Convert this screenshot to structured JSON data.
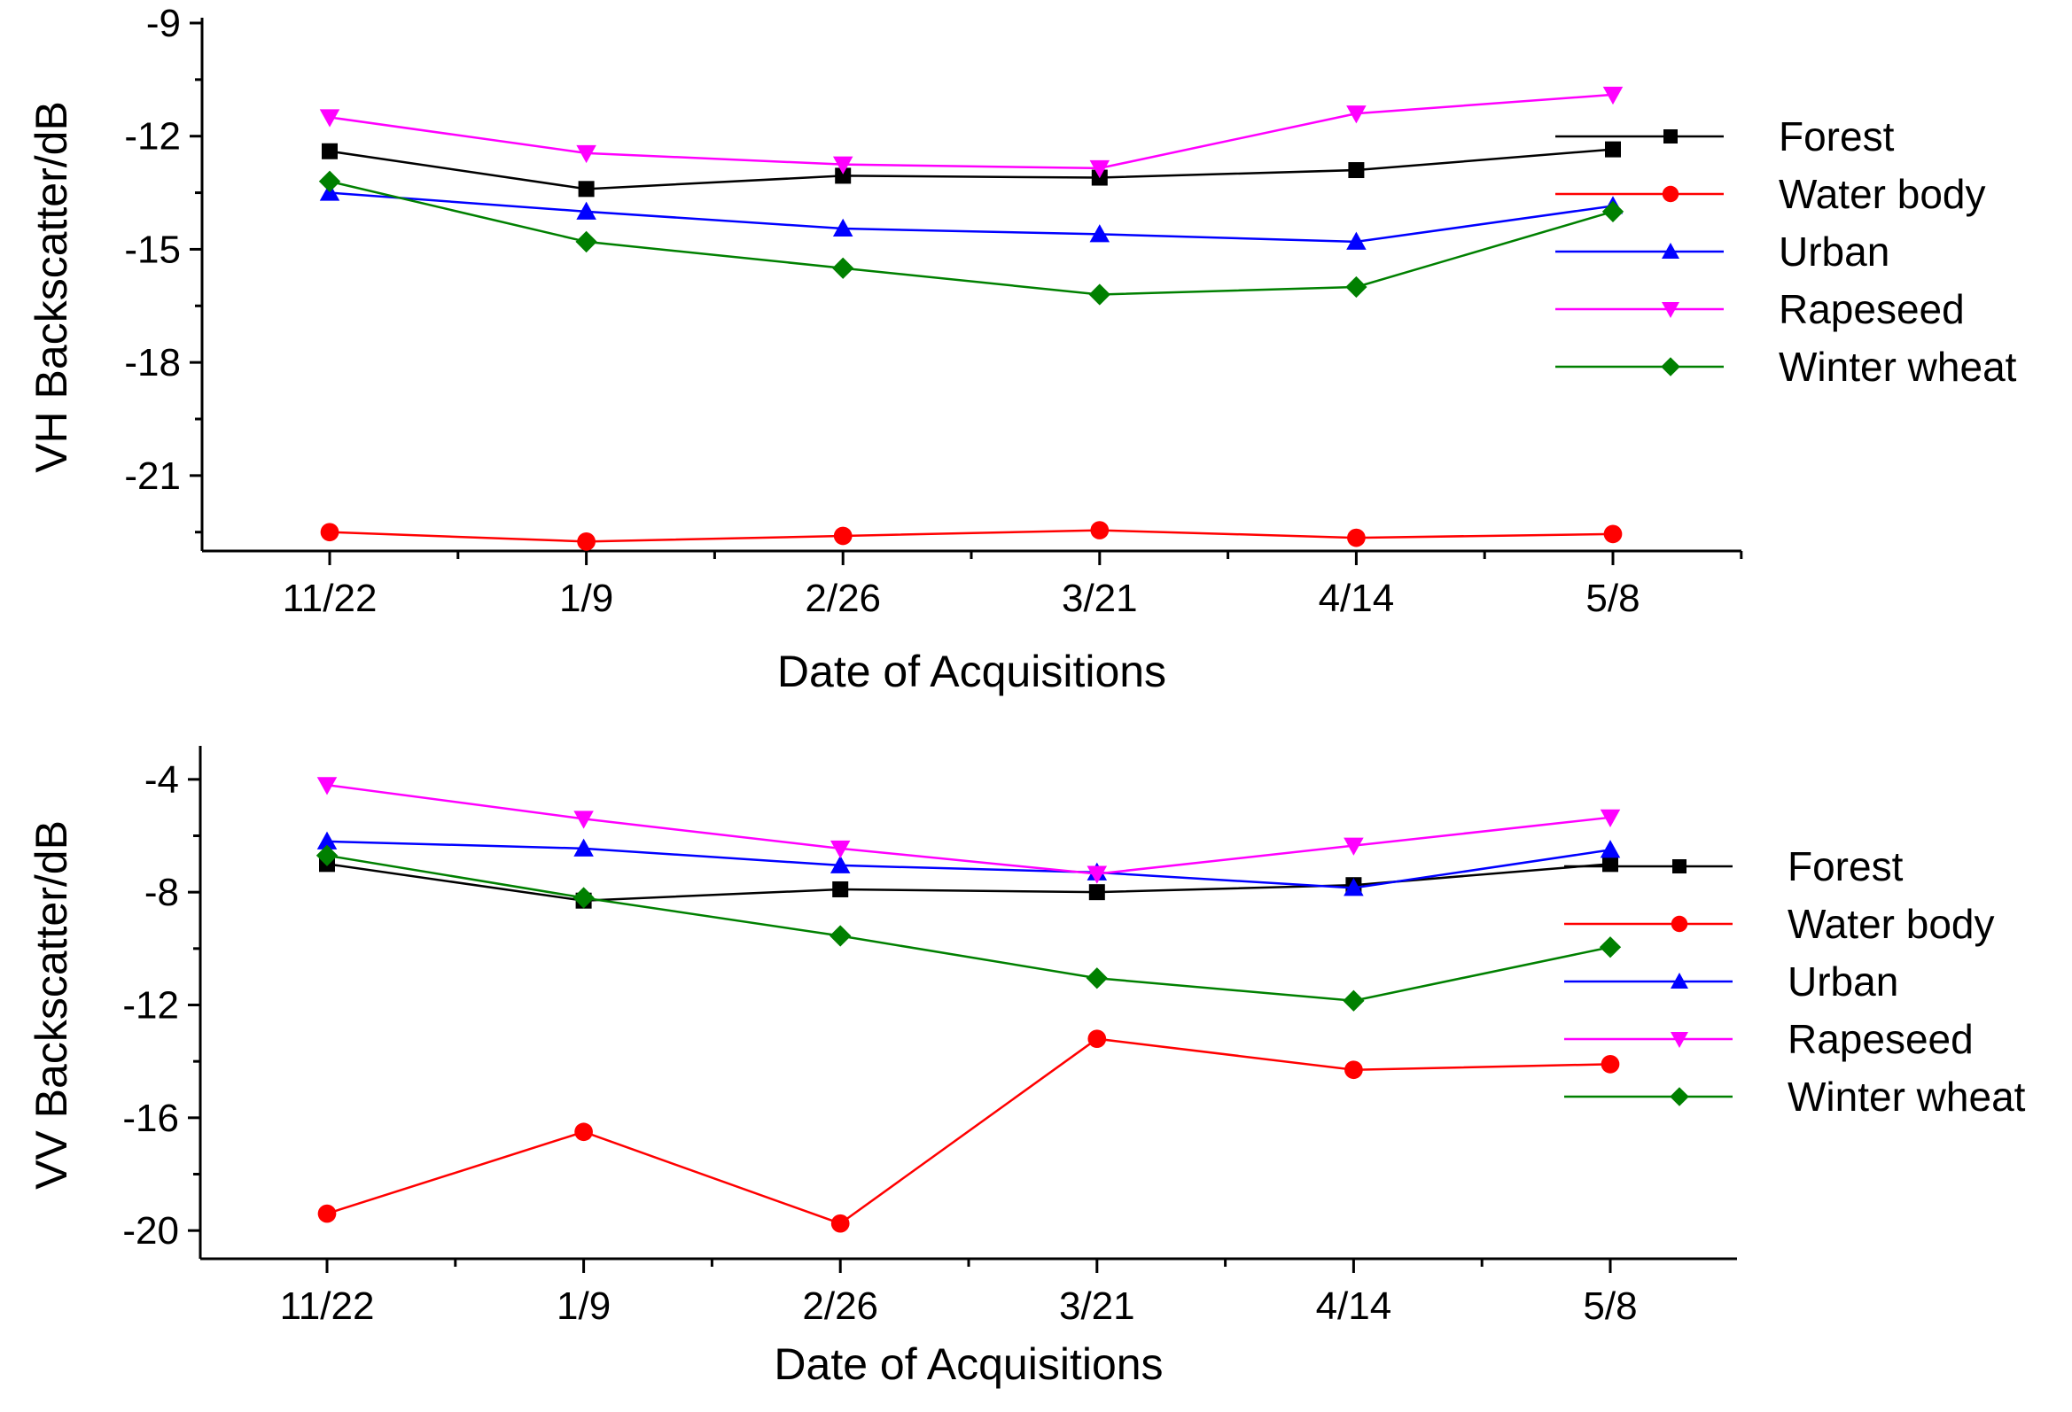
{
  "chart_data": [
    {
      "type": "line",
      "xlabel": "Date of Acquisitions",
      "ylabel": "VH Backscatter/dB",
      "categories": [
        "11/22",
        "1/9",
        "2/26",
        "3/21",
        "4/14",
        "5/8"
      ],
      "ylim": [
        -23,
        -9
      ],
      "yticks": [
        -9,
        -12,
        -15,
        -18,
        -21
      ],
      "ytick_labels": [
        "-9",
        "-12",
        "-15",
        "-18",
        "-21"
      ],
      "legend_position": "right",
      "series": [
        {
          "name": "Forest",
          "color": "#000000",
          "marker": "square",
          "values": [
            -12.4,
            -13.4,
            -13.05,
            -13.1,
            -12.9,
            -12.35
          ]
        },
        {
          "name": "Water body",
          "color": "#ff0000",
          "marker": "circle",
          "values": [
            -22.5,
            -22.75,
            -22.6,
            -22.45,
            -22.65,
            -22.55
          ]
        },
        {
          "name": "Urban",
          "color": "#0000ff",
          "marker": "triangle-up",
          "values": [
            -13.5,
            -14.0,
            -14.45,
            -14.6,
            -14.8,
            -13.85
          ]
        },
        {
          "name": "Rapeseed",
          "color": "#ff00ff",
          "marker": "triangle-down",
          "values": [
            -11.5,
            -12.45,
            -12.75,
            -12.85,
            -11.4,
            -10.9
          ]
        },
        {
          "name": "Winter wheat",
          "color": "#008000",
          "marker": "diamond",
          "values": [
            -13.2,
            -14.8,
            -15.5,
            -16.2,
            -16.0,
            -14.0
          ]
        }
      ]
    },
    {
      "type": "line",
      "xlabel": "Date of Acquisitions",
      "ylabel": "VV Backscatter/dB",
      "categories": [
        "11/22",
        "1/9",
        "2/26",
        "3/21",
        "4/14",
        "5/8"
      ],
      "ylim": [
        -21,
        -3
      ],
      "yticks": [
        -4,
        -8,
        -12,
        -16,
        -20
      ],
      "ytick_labels": [
        "-4",
        "-8",
        "-12",
        "-16",
        "-20"
      ],
      "legend_position": "right",
      "series": [
        {
          "name": "Forest",
          "color": "#000000",
          "marker": "square",
          "values": [
            -7.0,
            -8.3,
            -7.9,
            -8.0,
            -7.75,
            -7.0
          ]
        },
        {
          "name": "Water body",
          "color": "#ff0000",
          "marker": "circle",
          "values": [
            -19.4,
            -16.5,
            -19.75,
            -13.2,
            -14.3,
            -14.1
          ]
        },
        {
          "name": "Urban",
          "color": "#0000ff",
          "marker": "triangle-up",
          "values": [
            -6.2,
            -6.45,
            -7.05,
            -7.3,
            -7.85,
            -6.5
          ]
        },
        {
          "name": "Rapeseed",
          "color": "#ff00ff",
          "marker": "triangle-down",
          "values": [
            -4.2,
            -5.4,
            -6.45,
            -7.35,
            -6.35,
            -5.35
          ]
        },
        {
          "name": "Winter wheat",
          "color": "#008000",
          "marker": "diamond",
          "values": [
            -6.7,
            -8.2,
            -9.55,
            -11.05,
            -11.85,
            -9.95
          ]
        }
      ]
    }
  ]
}
